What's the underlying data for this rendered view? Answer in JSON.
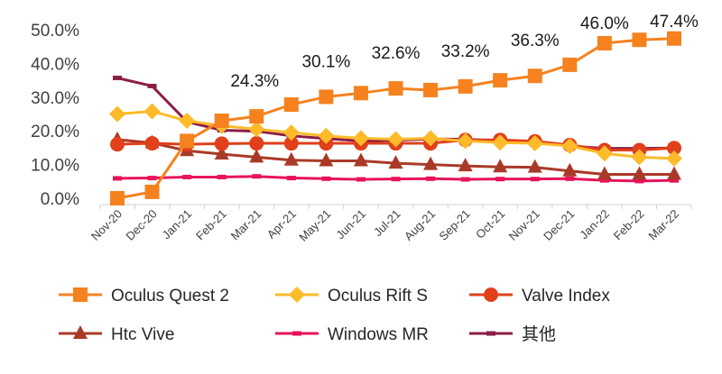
{
  "chart_data": {
    "type": "line",
    "title": "",
    "xlabel": "",
    "ylabel": "",
    "ylim": [
      0,
      50
    ],
    "y_ticks": [
      "0.0%",
      "10.0%",
      "20.0%",
      "30.0%",
      "40.0%",
      "50.0%"
    ],
    "grid": false,
    "legend_position": "bottom",
    "categories": [
      "Nov-20",
      "Dec-20",
      "Jan-21",
      "Feb-21",
      "Mar-21",
      "Apr-21",
      "May-21",
      "Jun-21",
      "Jul-21",
      "Aug-21",
      "Sep-21",
      "Oct-21",
      "Nov-21",
      "Dec-21",
      "Jan-22",
      "Feb-22",
      "Mar-22"
    ],
    "series": [
      {
        "name": "Oculus Quest 2",
        "color": "#F5821F",
        "marker": "square",
        "values": [
          0.0,
          1.9,
          17.0,
          23.0,
          24.3,
          27.8,
          30.1,
          31.2,
          32.6,
          32.1,
          33.2,
          35.0,
          36.3,
          39.6,
          46.0,
          47.0,
          47.4
        ]
      },
      {
        "name": "Oculus Rift S",
        "color": "#FDBB2A",
        "marker": "diamond",
        "values": [
          25.0,
          25.8,
          23.0,
          21.5,
          20.5,
          19.5,
          18.5,
          17.8,
          17.5,
          17.8,
          17.0,
          16.5,
          16.3,
          15.5,
          13.3,
          12.2,
          11.8
        ]
      },
      {
        "name": "Valve Index",
        "color": "#E0401A",
        "marker": "circle",
        "values": [
          16.0,
          16.3,
          16.0,
          16.2,
          16.3,
          16.3,
          16.3,
          16.3,
          16.3,
          16.3,
          17.3,
          17.3,
          16.9,
          15.8,
          14.3,
          14.3,
          14.9
        ]
      },
      {
        "name": "Htc Vive",
        "color": "#A93A27",
        "marker": "triangle",
        "values": [
          17.4,
          16.4,
          14.1,
          13.1,
          12.2,
          11.3,
          11.1,
          11.1,
          10.4,
          10.0,
          9.6,
          9.3,
          9.2,
          8.1,
          7.1,
          7.1,
          7.1
        ]
      },
      {
        "name": "Windows MR",
        "color": "#E8135A",
        "marker": "dash",
        "values": [
          5.9,
          6.0,
          6.3,
          6.3,
          6.5,
          6.0,
          5.8,
          5.6,
          5.7,
          5.8,
          5.6,
          5.7,
          5.7,
          5.8,
          5.3,
          5.1,
          5.3
        ]
      },
      {
        "name": "其他",
        "color": "#8C1D47",
        "marker": "dash",
        "values": [
          35.7,
          33.3,
          22.7,
          20.2,
          19.9,
          18.5,
          17.7,
          17.0,
          17.2,
          17.6,
          17.5,
          17.0,
          16.6,
          15.5,
          14.8,
          14.8,
          14.9
        ]
      }
    ],
    "annotations": [
      {
        "series": "Oculus Quest 2",
        "category": "Mar-21",
        "text": "24.3%"
      },
      {
        "series": "Oculus Quest 2",
        "category": "May-21",
        "text": "30.1%"
      },
      {
        "series": "Oculus Quest 2",
        "category": "Jul-21",
        "text": "32.6%"
      },
      {
        "series": "Oculus Quest 2",
        "category": "Sep-21",
        "text": "33.2%"
      },
      {
        "series": "Oculus Quest 2",
        "category": "Nov-21",
        "text": "36.3%"
      },
      {
        "series": "Oculus Quest 2",
        "category": "Jan-22",
        "text": "46.0%"
      },
      {
        "series": "Oculus Quest 2",
        "category": "Mar-22",
        "text": "47.4%"
      }
    ]
  }
}
